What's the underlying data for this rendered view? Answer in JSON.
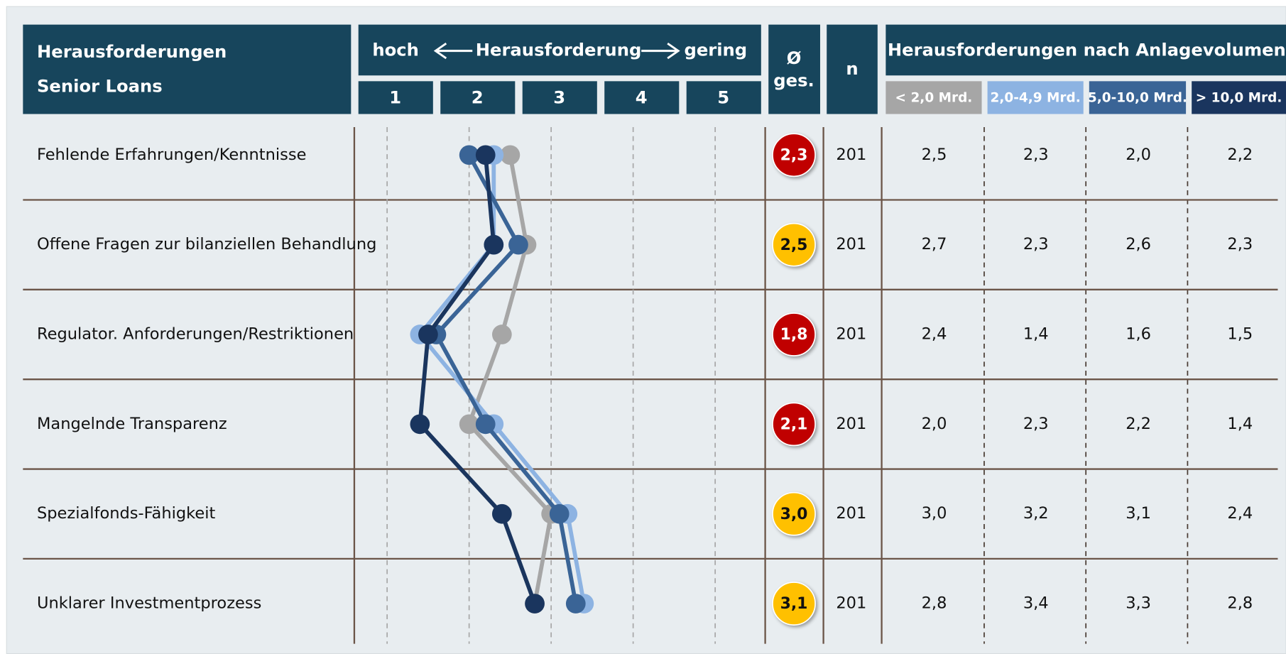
{
  "chart_data": {
    "type": "line",
    "title": [
      "Herausforderungen",
      "Senior Loans"
    ],
    "scale_title": "Herausforderung",
    "scale_low": "hoch",
    "scale_high": "gering",
    "average_header": [
      "Ø",
      "ges."
    ],
    "n_header": "n",
    "group_title": "Herausforderungen nach Anlagevolumen",
    "categories": [
      "Fehlende Erfahrungen/Kenntnisse",
      "Offene Fragen zur bilanziellen Behandlung",
      "Regulator. Anforderungen/Restriktionen",
      "Mangelnde Transparenz",
      "Spezialfonds-Fähigkeit",
      "Unklarer Investmentprozess"
    ],
    "xlim": [
      0.6,
      5.6
    ],
    "xticks": [
      1,
      2,
      3,
      4,
      5
    ],
    "grid": true,
    "average": {
      "values": [
        2.3,
        2.5,
        1.8,
        2.1,
        3.0,
        3.1
      ],
      "value_labels": [
        "2,3",
        "2,5",
        "1,8",
        "2,1",
        "3,0",
        "3,1"
      ],
      "colors": [
        "#c00000",
        "#ffc000",
        "#c00000",
        "#c00000",
        "#ffc000",
        "#ffc000"
      ]
    },
    "n": [
      201,
      201,
      201,
      201,
      201,
      201
    ],
    "series": [
      {
        "name": "< 2,0 Mrd.",
        "color": "#a6a6a6",
        "values": [
          2.5,
          2.7,
          2.4,
          2.0,
          3.0,
          2.8
        ],
        "value_labels": [
          "2,5",
          "2,7",
          "2,4",
          "2,0",
          "3,0",
          "2,8"
        ]
      },
      {
        "name": "2,0-4,9 Mrd.",
        "color": "#8db3e2",
        "values": [
          2.3,
          2.3,
          1.4,
          2.3,
          3.2,
          3.4
        ],
        "value_labels": [
          "2,3",
          "2,3",
          "1,4",
          "2,3",
          "3,2",
          "3,4"
        ]
      },
      {
        "name": "5,0-10,0 Mrd.",
        "color": "#3a6496",
        "values": [
          2.0,
          2.6,
          1.6,
          2.2,
          3.1,
          3.3
        ],
        "value_labels": [
          "2,0",
          "2,6",
          "1,6",
          "2,2",
          "3,1",
          "3,3"
        ]
      },
      {
        "name": "> 10,0 Mrd.",
        "color": "#1a355e",
        "values": [
          2.2,
          2.3,
          1.5,
          1.4,
          2.4,
          2.8
        ],
        "value_labels": [
          "2,2",
          "2,3",
          "1,5",
          "1,4",
          "2,4",
          "2,8"
        ]
      }
    ]
  }
}
